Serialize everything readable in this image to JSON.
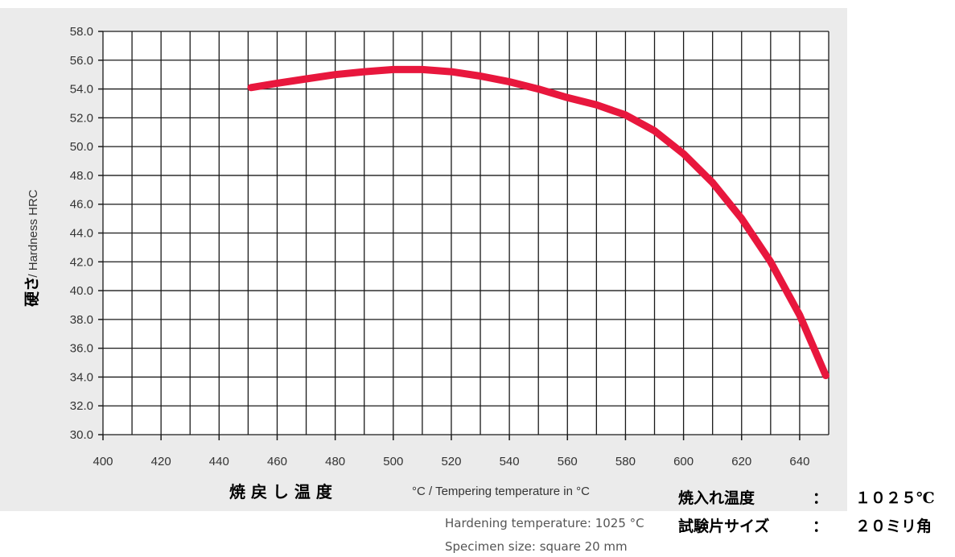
{
  "chart_data": {
    "type": "line",
    "ylabel_jp": "硬さ",
    "ylabel_en": "/ Hardness HRC",
    "xlabel_jp": "焼 戻 し 温 度",
    "xlabel_en": "°C / Tempering temperature in °C",
    "xlim": [
      400,
      650
    ],
    "ylim": [
      30,
      58
    ],
    "x_ticks": [
      "400",
      "420",
      "440",
      "460",
      "480",
      "500",
      "520",
      "540",
      "560",
      "580",
      "600",
      "620",
      "640"
    ],
    "y_ticks": [
      "30.0",
      "32.0",
      "34.0",
      "36.0",
      "38.0",
      "40.0",
      "42.0",
      "44.0",
      "46.0",
      "48.0",
      "50.0",
      "52.0",
      "54.0",
      "56.0",
      "58.0"
    ],
    "grid": true,
    "series": [
      {
        "color": "#e8173d",
        "points": [
          [
            451,
            54.1
          ],
          [
            460,
            54.4
          ],
          [
            470,
            54.7
          ],
          [
            480,
            55.0
          ],
          [
            490,
            55.2
          ],
          [
            500,
            55.35
          ],
          [
            510,
            55.35
          ],
          [
            520,
            55.2
          ],
          [
            530,
            54.9
          ],
          [
            540,
            54.5
          ],
          [
            550,
            54.0
          ],
          [
            560,
            53.4
          ],
          [
            570,
            52.9
          ],
          [
            580,
            52.2
          ],
          [
            590,
            51.1
          ],
          [
            600,
            49.5
          ],
          [
            610,
            47.5
          ],
          [
            620,
            45.0
          ],
          [
            630,
            42.0
          ],
          [
            640,
            38.3
          ],
          [
            649,
            34.1
          ]
        ]
      }
    ]
  },
  "notes": {
    "hardening_en": "Hardening temperature: 1025 °C",
    "specimen_en": "Specimen size: square 20 mm",
    "hardening_jp_label": "焼入れ温度",
    "hardening_jp_sep": "：",
    "hardening_jp_value": "１０２５℃",
    "specimen_jp_label": "試験片サイズ",
    "specimen_jp_sep": "：",
    "specimen_jp_value": "２０ミリ角"
  }
}
